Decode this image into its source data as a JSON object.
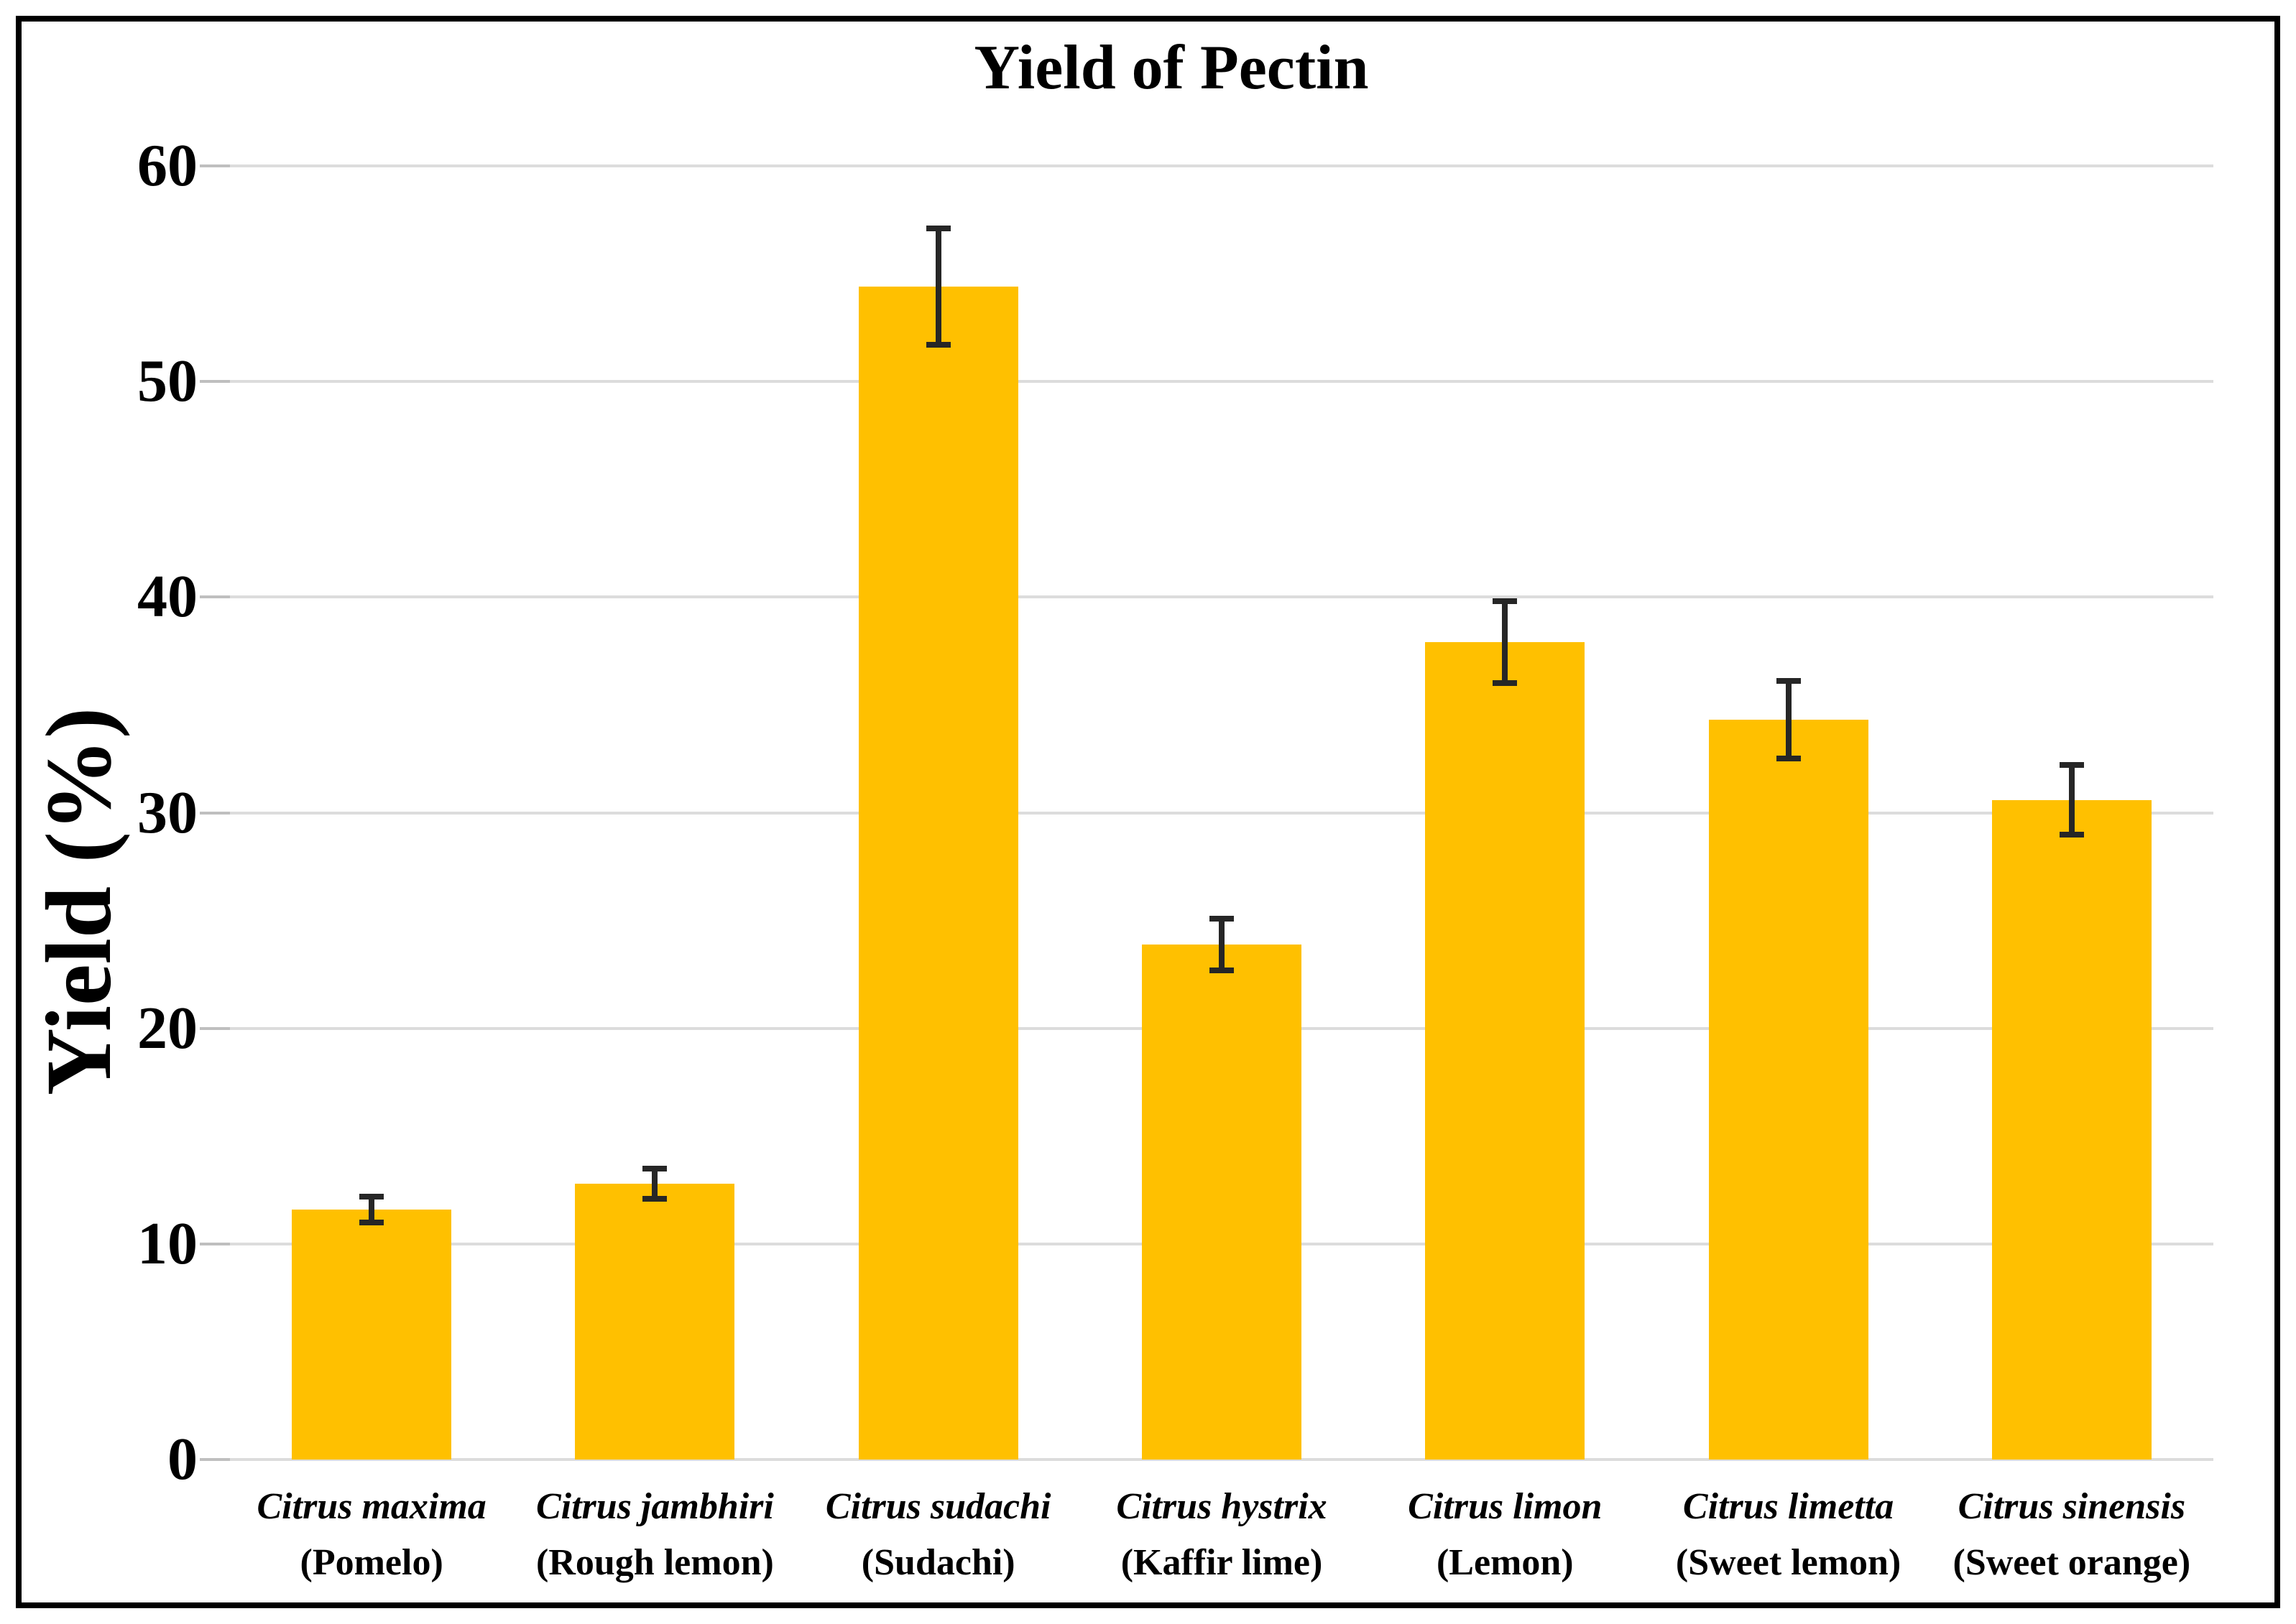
{
  "figure": {
    "title": "Yield of Pectin",
    "y_axis_title": "Yield (%)"
  },
  "colors": {
    "bar_fill": "#FFC000",
    "gridline": "#DCDCDC",
    "tick_mark": "#BFBFBF",
    "error_bar": "#262626",
    "frame_border": "#000000",
    "background": "#FFFFFF",
    "text": "#000000"
  },
  "chart_data": {
    "type": "bar",
    "title": "Yield of Pectin",
    "xlabel": "",
    "ylabel": "Yield (%)",
    "ylim": [
      0,
      60
    ],
    "yticks": [
      0,
      10,
      20,
      30,
      40,
      50,
      60
    ],
    "grid": true,
    "legend": false,
    "categories": [
      "Citrus maxima (Pomelo)",
      "Citrus jambhiri (Rough lemon)",
      "Citrus sudachi (Sudachi)",
      "Citrus hystrix (Kaffir lime)",
      "Citrus limon (Lemon)",
      "Citrus limetta (Sweet lemon)",
      "Citrus sinensis (Sweet orange)"
    ],
    "category_labels": [
      {
        "species": "Citrus maxima",
        "common": "(Pomelo)"
      },
      {
        "species": "Citrus jambhiri",
        "common": "(Rough lemon)"
      },
      {
        "species": "Citrus sudachi",
        "common": "(Sudachi)"
      },
      {
        "species": "Citrus hystrix",
        "common": "(Kaffir lime)"
      },
      {
        "species": "Citrus limon",
        "common": "(Lemon)"
      },
      {
        "species": "Citrus limetta",
        "common": "(Sweet lemon)"
      },
      {
        "species": "Citrus sinensis",
        "common": "(Sweet orange)"
      }
    ],
    "values": [
      11.6,
      12.8,
      54.4,
      23.9,
      37.9,
      34.3,
      30.6
    ],
    "errors": [
      0.6,
      0.7,
      2.7,
      1.2,
      1.9,
      1.8,
      1.6
    ]
  }
}
